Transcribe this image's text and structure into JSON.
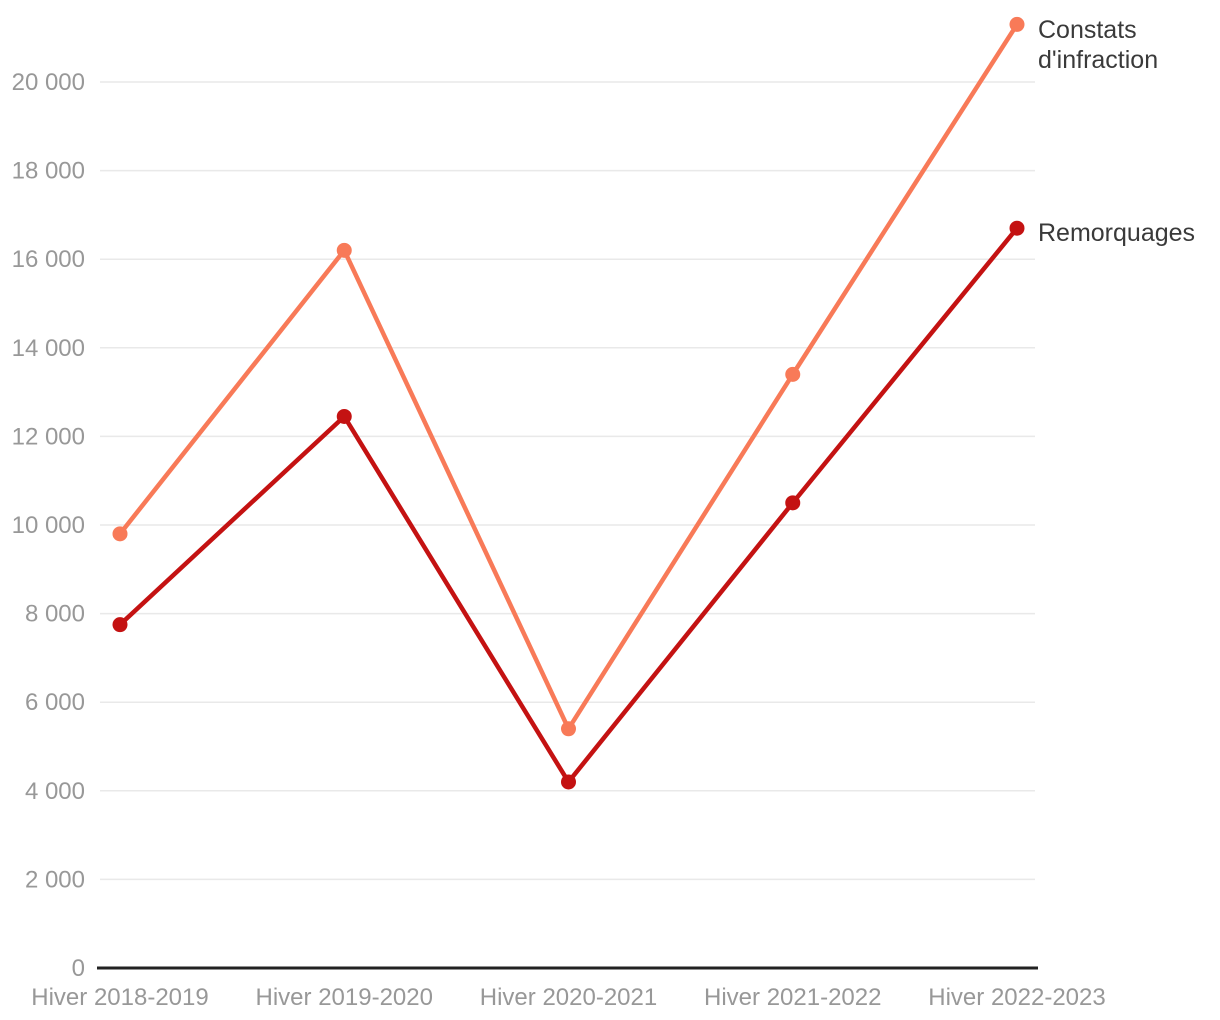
{
  "chart_data": {
    "type": "line",
    "title": "",
    "xlabel": "",
    "ylabel": "",
    "categories": [
      "Hiver 2018-2019",
      "Hiver 2019-2020",
      "Hiver 2020-2021",
      "Hiver 2021-2022",
      "Hiver 2022-2023"
    ],
    "series": [
      {
        "name": "Constats d'infraction",
        "color": "#f87a58",
        "values": [
          9800,
          16200,
          5400,
          13400,
          21300
        ]
      },
      {
        "name": "Remorquages",
        "color": "#c41212",
        "values": [
          7750,
          12450,
          4200,
          10500,
          16700
        ]
      }
    ],
    "ylim": [
      0,
      20000
    ],
    "y_tick_step": 2000,
    "y_tick_labels": [
      "0",
      "2 000",
      "4 000",
      "6 000",
      "8 000",
      "10 000",
      "12 000",
      "14 000",
      "16 000",
      "18 000",
      "20 000"
    ],
    "grid": true,
    "legend_position": "right-of-last-point",
    "colors": {
      "background": "#ffffff",
      "gridline": "#e9e9e9",
      "axis_line": "#222222",
      "tick_label": "#989898",
      "legend_text": "#3a3a3a"
    }
  }
}
